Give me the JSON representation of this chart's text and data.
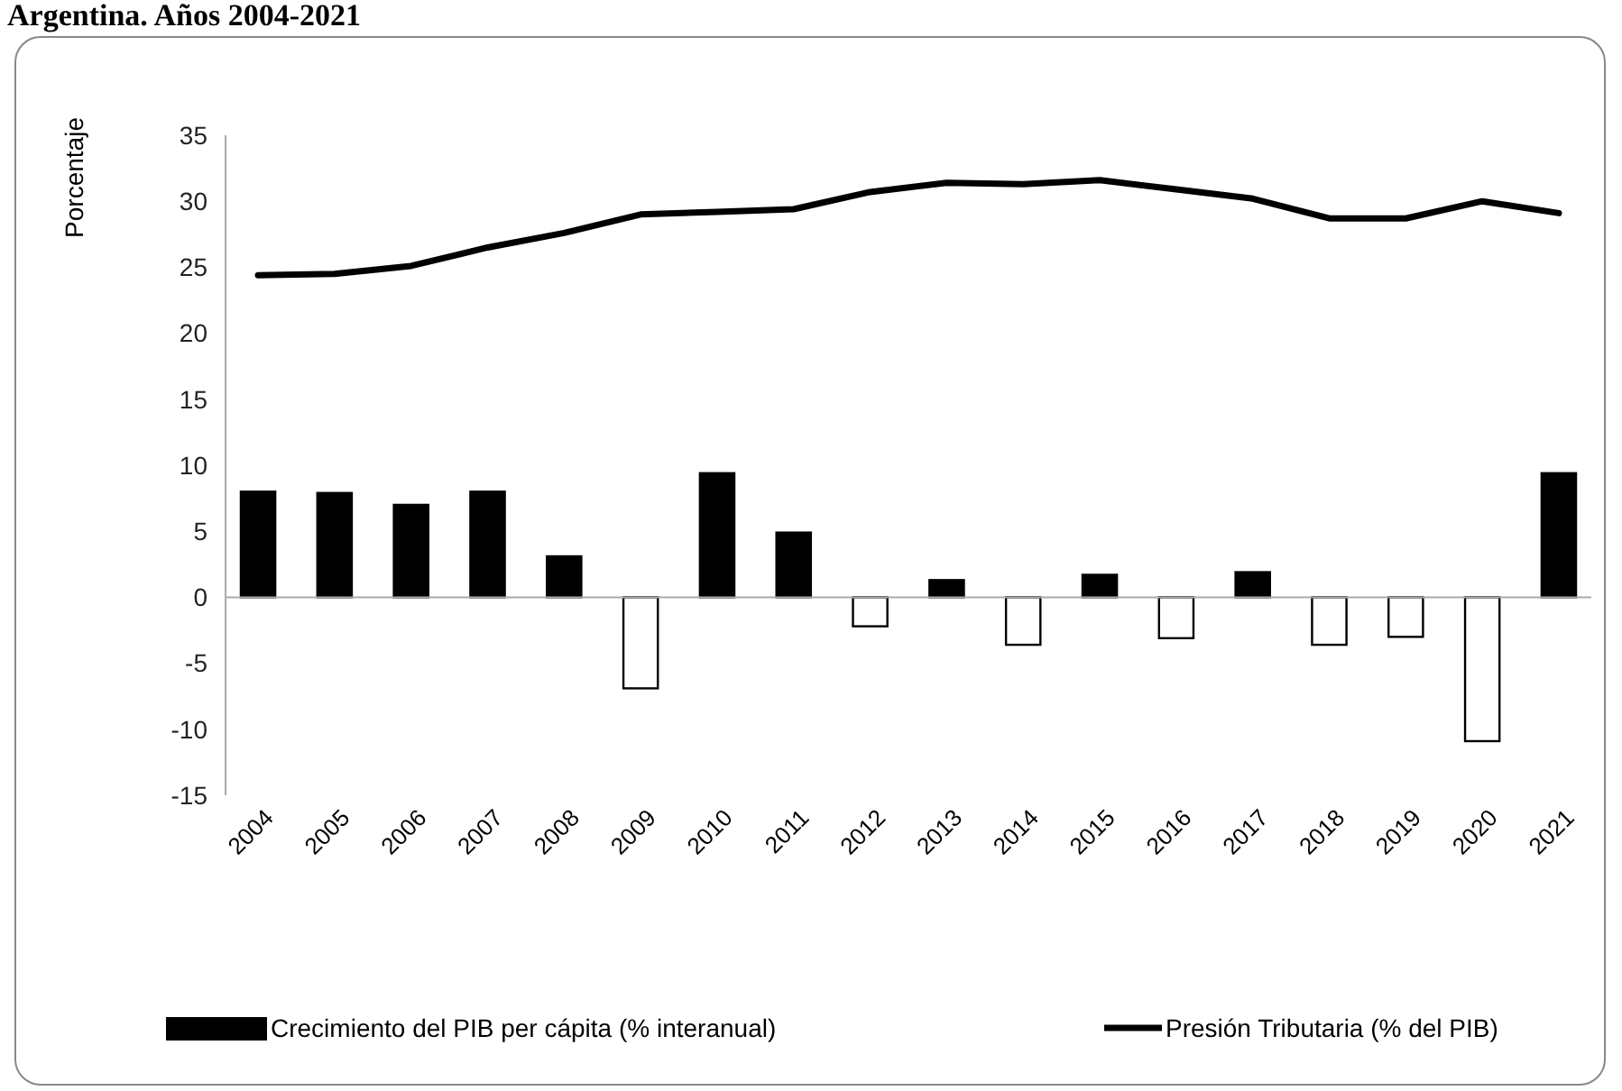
{
  "chart_data": {
    "type": "bar",
    "title": "Argentina. Años 2004-2021",
    "ylabel": "Porcentaje",
    "categories": [
      "2004",
      "2005",
      "2006",
      "2007",
      "2008",
      "2009",
      "2010",
      "2011",
      "2012",
      "2013",
      "2014",
      "2015",
      "2016",
      "2017",
      "2018",
      "2019",
      "2020",
      "2021"
    ],
    "series": [
      {
        "name": "Crecimiento del PIB per cápita (% interanual)",
        "color": "#000000",
        "colors": [
          "#000000",
          "#000000",
          "#000000",
          "#000000",
          "#000000",
          "#ffffff",
          "#000000",
          "#000000",
          "#ffffff",
          "#000000",
          "#ffffff",
          "#000000",
          "#ffffff",
          "#000000",
          "#ffffff",
          "#ffffff",
          "#ffffff",
          "#000000"
        ],
        "values": [
          8.0,
          7.9,
          7.0,
          8.0,
          3.1,
          -6.9,
          9.4,
          4.9,
          -2.2,
          1.3,
          -3.6,
          1.7,
          -3.1,
          1.9,
          -3.6,
          -3.0,
          -10.9,
          9.4
        ]
      },
      {
        "name": "Presión Tributaria (% del PIB)",
        "type": "line",
        "color": "#000000",
        "values": [
          24.4,
          24.5,
          25.1,
          26.5,
          27.6,
          29.0,
          29.2,
          29.4,
          30.7,
          31.4,
          31.3,
          31.6,
          30.9,
          30.2,
          28.7,
          28.7,
          30.0,
          29.1
        ]
      }
    ],
    "ylim": [
      -15,
      35
    ],
    "yticks": [
      -15,
      -10,
      -5,
      0,
      5,
      10,
      15,
      20,
      25,
      30,
      35
    ],
    "legend": "bottom",
    "marker": "none"
  }
}
